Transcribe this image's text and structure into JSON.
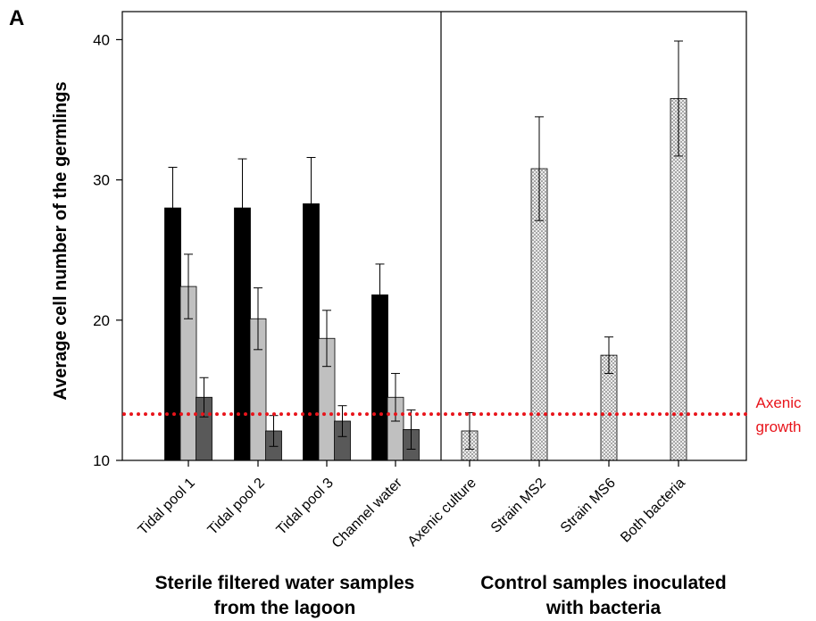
{
  "panel_label": "A",
  "colors": {
    "series_1": "#000000",
    "series_2": "#c0c0c0",
    "series_3": "#595959",
    "control": "#e8e8e8",
    "reference_line": "#e8141b"
  },
  "chart_data": {
    "type": "bar",
    "ylabel": "Average cell number of the germlings",
    "xlabel": "",
    "ylim": [
      10,
      42
    ],
    "yticks": [
      10,
      20,
      30,
      40
    ],
    "grid": false,
    "categories": [
      "Tidal pool 1",
      "Tidal pool 2",
      "Tidal pool 3",
      "Channel water",
      "Axenic culture",
      "Strain MS2",
      "Strain MS6",
      "Both bacteria"
    ],
    "groups": [
      {
        "label_line1": "Sterile filtered water samples",
        "label_line2": "from the lagoon",
        "categories": [
          "Tidal pool 1",
          "Tidal pool 2",
          "Tidal pool 3",
          "Channel water"
        ]
      },
      {
        "label_line1": "Control samples inoculated",
        "label_line2": "with bacteria",
        "categories": [
          "Axenic culture",
          "Strain MS2",
          "Strain MS6",
          "Both bacteria"
        ]
      }
    ],
    "series": [
      {
        "values": [
          28.0,
          28.0,
          28.3,
          21.8,
          null,
          null,
          null,
          null
        ],
        "errors": [
          2.9,
          3.5,
          3.3,
          2.2,
          null,
          null,
          null,
          null
        ],
        "color": "#000000",
        "pattern": "solid"
      },
      {
        "values": [
          22.4,
          20.1,
          18.7,
          14.5,
          null,
          null,
          null,
          null
        ],
        "errors": [
          2.3,
          2.2,
          2.0,
          1.7,
          null,
          null,
          null,
          null
        ],
        "color": "#c0c0c0",
        "pattern": "solid"
      },
      {
        "values": [
          14.5,
          12.1,
          12.8,
          12.2,
          null,
          null,
          null,
          null
        ],
        "errors": [
          1.4,
          1.1,
          1.1,
          1.4,
          null,
          null,
          null,
          null
        ],
        "color": "#595959",
        "pattern": "solid"
      },
      {
        "values": [
          null,
          null,
          null,
          null,
          12.1,
          30.8,
          17.5,
          35.8
        ],
        "errors": [
          null,
          null,
          null,
          null,
          1.3,
          3.7,
          1.3,
          4.1
        ],
        "color": "#e8e8e8",
        "pattern": "dotted"
      }
    ],
    "reference_line": {
      "value": 13.3,
      "label_line1": "Axenic",
      "label_line2": "growth",
      "color": "#e8141b",
      "style": "dotted"
    }
  }
}
